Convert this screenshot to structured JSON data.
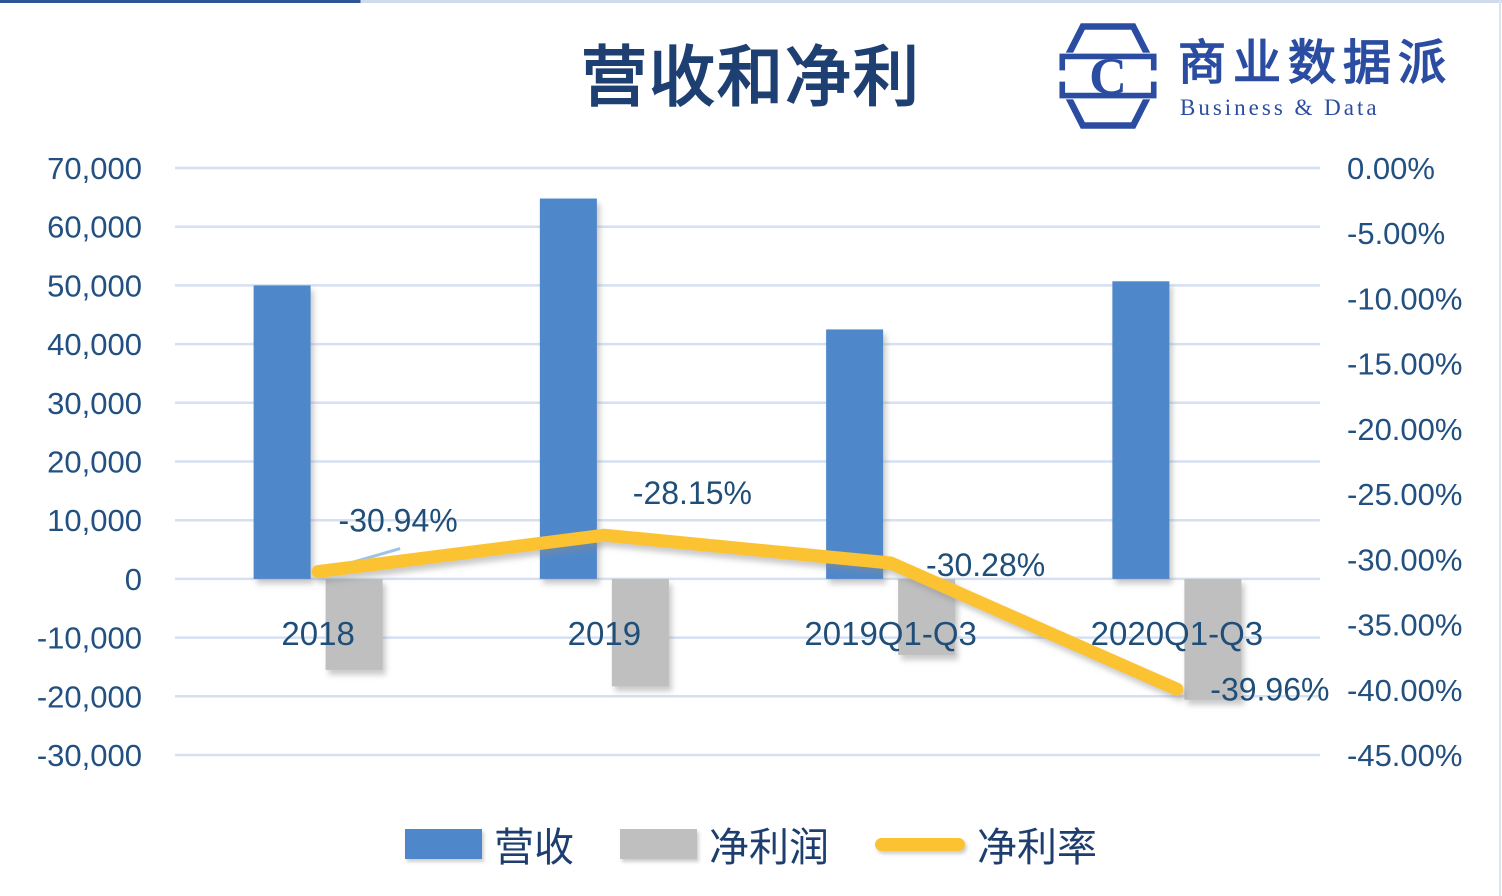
{
  "title": "营收和净利",
  "logo": {
    "monogram": "C",
    "name": "商业数据派",
    "tagline": "Business & Data",
    "color": "#2b4da1"
  },
  "colors": {
    "revenue_bar": "#4f88ca",
    "profit_bar": "#bfbfbf",
    "rate_line": "#fbc232",
    "gridline": "#d5e1f2",
    "axis_text": "#215081",
    "leader_line": "#9dc3e6"
  },
  "chart_data": {
    "type": "combo",
    "categories": [
      "2018",
      "2019",
      "2019Q1-Q3",
      "2020Q1-Q3"
    ],
    "series": [
      {
        "name": "营收",
        "type": "bar",
        "axis": "left",
        "values": [
          50000,
          64800,
          42500,
          50700
        ]
      },
      {
        "name": "净利润",
        "type": "bar",
        "axis": "left",
        "values": [
          -15500,
          -18300,
          -12950,
          -20600
        ]
      },
      {
        "name": "净利率",
        "type": "line",
        "axis": "right",
        "values": [
          -30.94,
          -28.15,
          -30.28,
          -39.96
        ],
        "labels": [
          "-30.94%",
          "-28.15%",
          "-30.28%",
          "-39.96%"
        ]
      }
    ],
    "left_axis": {
      "min": -30000,
      "max": 70000,
      "step": 10000,
      "ticks": [
        "70,000",
        "60,000",
        "50,000",
        "40,000",
        "30,000",
        "20,000",
        "10,000",
        "0",
        "-10,000",
        "-20,000",
        "-30,000"
      ]
    },
    "right_axis": {
      "min": -45,
      "max": 0,
      "step": 5,
      "ticks": [
        "0.00%",
        "-5.00%",
        "-10.00%",
        "-15.00%",
        "-20.00%",
        "-25.00%",
        "-30.00%",
        "-35.00%",
        "-40.00%",
        "-45.00%"
      ]
    },
    "grid": true,
    "legend_position": "bottom"
  },
  "legend": {
    "items": [
      {
        "label": "营收",
        "swatch": "bar-blue"
      },
      {
        "label": "净利润",
        "swatch": "bar-gray"
      },
      {
        "label": "净利率",
        "swatch": "line-yellow"
      }
    ]
  }
}
